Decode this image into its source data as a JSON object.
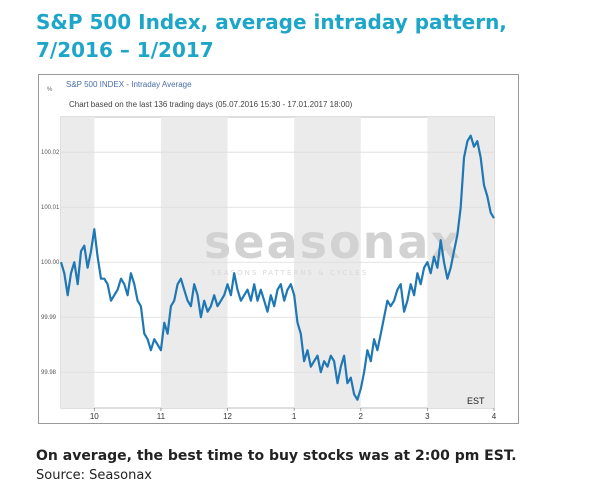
{
  "header": {
    "title": "S&P 500 Index, average intraday pattern, 7/2016 – 1/2017"
  },
  "chart_data": {
    "type": "line",
    "window_title": "S&P 500 INDEX - Intraday Average",
    "subtitle": "Chart based on the last 136 trading days (05.07.2016 15:30 - 17.01.2017 18:00)",
    "y_unit": "%",
    "timezone_label": "EST",
    "watermark": "seasonax",
    "watermark_tagline": "SEASONS  PATTERNS  &  CYCLES",
    "x_ticks": [
      "10",
      "11",
      "12",
      "1",
      "2",
      "3",
      "4"
    ],
    "y_ticks": [
      "100.02",
      "100.01",
      "100.00",
      "99.99",
      "99.98"
    ],
    "ylim": [
      99.9735,
      100.0264
    ],
    "xlim": [
      9.5,
      16.0
    ],
    "grid": true,
    "line_color": "#1f77b4",
    "series": [
      {
        "x": [
          9.5,
          9.55,
          9.6,
          9.65,
          9.7,
          9.75,
          9.8,
          9.85,
          9.9,
          9.95,
          10.0,
          10.05,
          10.1,
          10.15,
          10.2,
          10.25,
          10.3,
          10.35,
          10.4,
          10.45,
          10.5,
          10.55,
          10.6,
          10.65,
          10.7,
          10.75,
          10.8,
          10.85,
          10.9,
          10.95,
          11.0,
          11.05,
          11.1,
          11.15,
          11.2,
          11.25,
          11.3,
          11.35,
          11.4,
          11.45,
          11.5,
          11.55,
          11.6,
          11.65,
          11.7,
          11.75,
          11.8,
          11.85,
          11.9,
          11.95,
          12.0,
          12.05,
          12.1,
          12.15,
          12.2,
          12.25,
          12.3,
          12.35,
          12.4,
          12.45,
          12.5,
          12.55,
          12.6,
          12.65,
          12.7,
          12.75,
          12.8,
          12.85,
          12.9,
          12.95,
          13.0,
          13.05,
          13.1,
          13.15,
          13.2,
          13.25,
          13.3,
          13.35,
          13.4,
          13.45,
          13.5,
          13.55,
          13.6,
          13.65,
          13.7,
          13.75,
          13.8,
          13.85,
          13.9,
          13.95,
          14.0,
          14.05,
          14.1,
          14.15,
          14.2,
          14.25,
          14.3,
          14.35,
          14.4,
          14.45,
          14.5,
          14.55,
          14.6,
          14.65,
          14.7,
          14.75,
          14.8,
          14.85,
          14.9,
          14.95,
          15.0,
          15.05,
          15.1,
          15.15,
          15.2,
          15.25,
          15.3,
          15.35,
          15.4,
          15.45,
          15.5,
          15.55,
          15.6,
          15.65,
          15.7,
          15.75,
          15.8,
          15.85,
          15.9,
          15.95,
          16.0
        ],
        "values": [
          100.0,
          99.998,
          99.994,
          99.998,
          100.0,
          99.996,
          100.002,
          100.003,
          99.999,
          100.002,
          100.006,
          100.001,
          99.997,
          99.997,
          99.996,
          99.993,
          99.994,
          99.995,
          99.997,
          99.996,
          99.994,
          99.998,
          99.996,
          99.993,
          99.992,
          99.987,
          99.986,
          99.984,
          99.986,
          99.985,
          99.984,
          99.989,
          99.987,
          99.992,
          99.993,
          99.996,
          99.997,
          99.995,
          99.993,
          99.992,
          99.996,
          99.994,
          99.99,
          99.993,
          99.991,
          99.992,
          99.994,
          99.992,
          99.993,
          99.994,
          99.996,
          99.994,
          99.998,
          99.995,
          99.993,
          99.994,
          99.995,
          99.993,
          99.996,
          99.993,
          99.995,
          99.993,
          99.991,
          99.994,
          99.992,
          99.995,
          99.996,
          99.993,
          99.995,
          99.996,
          99.994,
          99.989,
          99.987,
          99.982,
          99.984,
          99.981,
          99.982,
          99.983,
          99.98,
          99.982,
          99.981,
          99.983,
          99.982,
          99.978,
          99.981,
          99.983,
          99.978,
          99.979,
          99.976,
          99.975,
          99.977,
          99.98,
          99.984,
          99.982,
          99.986,
          99.984,
          99.987,
          99.99,
          99.993,
          99.992,
          99.993,
          99.995,
          99.996,
          99.991,
          99.993,
          99.996,
          99.994,
          99.998,
          99.996,
          99.999,
          100.0,
          99.998,
          100.001,
          99.999,
          100.004,
          100.0,
          99.997,
          99.999,
          100.002,
          100.005,
          100.01,
          100.019,
          100.022,
          100.023,
          100.021,
          100.022,
          100.019,
          100.014,
          100.012,
          100.009,
          100.008
        ]
      }
    ]
  },
  "caption": "On average, the best time to buy stocks was at 2:00 pm EST.",
  "source": "Source: Seasonax"
}
